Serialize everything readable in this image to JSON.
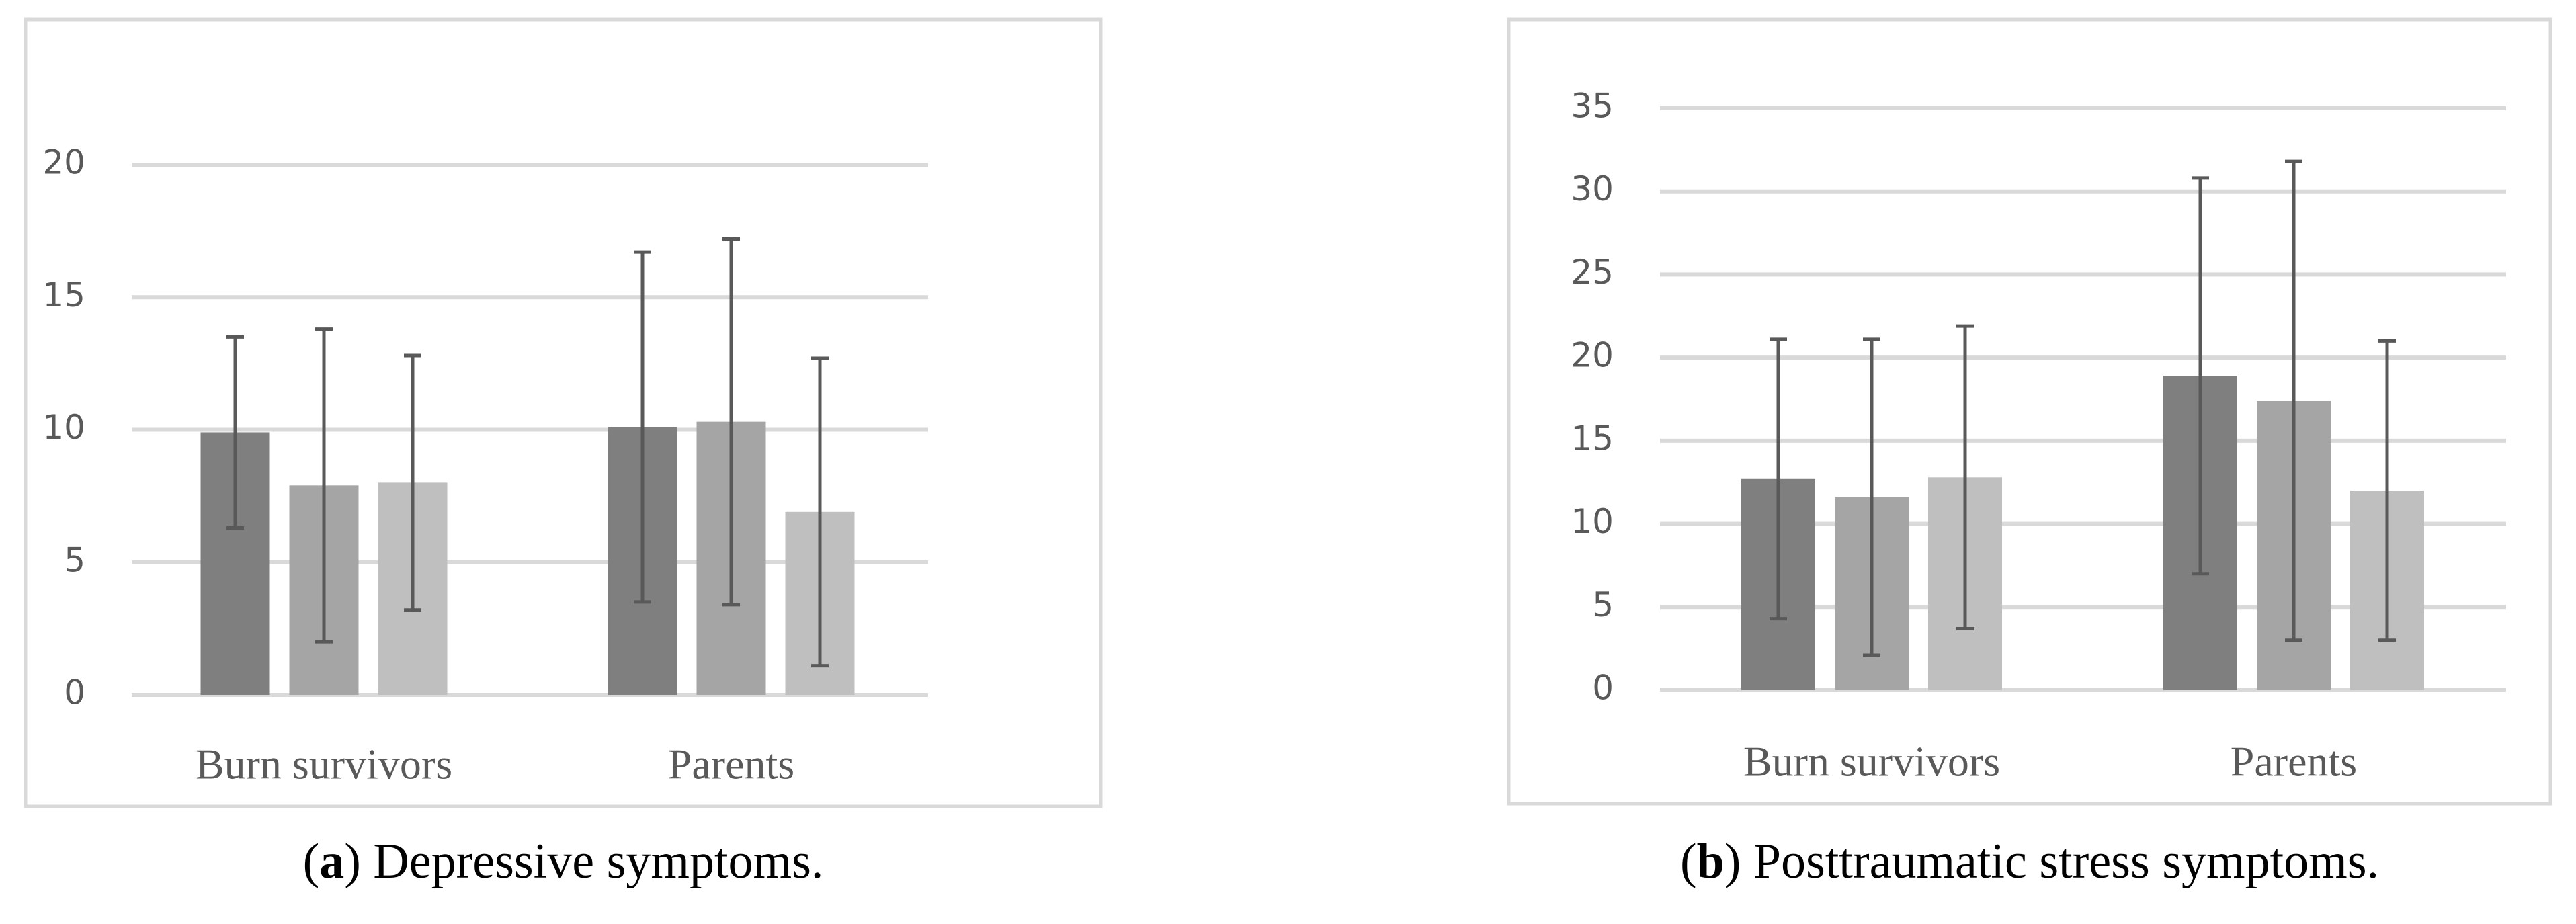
{
  "chart_data": [
    {
      "type": "bar",
      "caption": [
        "(",
        "a",
        ") Depressive symptoms."
      ],
      "categories": [
        "Burn survivors",
        "Parents"
      ],
      "series": [
        {
          "color": "#7f7f7f",
          "values": [
            9.9,
            10.1
          ],
          "errors": [
            3.6,
            6.6
          ]
        },
        {
          "color": "#a5a5a5",
          "values": [
            7.9,
            10.3
          ],
          "errors": [
            5.9,
            6.9
          ]
        },
        {
          "color": "#bfbfbf",
          "values": [
            8.0,
            6.9
          ],
          "errors": [
            4.8,
            5.8
          ]
        }
      ],
      "ylim": [
        0,
        20
      ],
      "yticks": [
        0,
        5,
        10,
        15,
        20
      ],
      "grid": true
    },
    {
      "type": "bar",
      "caption": [
        "(",
        "b",
        ") Posttraumatic stress symptoms."
      ],
      "categories": [
        "Burn survivors",
        "Parents"
      ],
      "series": [
        {
          "color": "#7f7f7f",
          "values": [
            12.7,
            18.9
          ],
          "errors": [
            8.4,
            11.9
          ]
        },
        {
          "color": "#a5a5a5",
          "values": [
            11.6,
            17.4
          ],
          "errors": [
            9.5,
            14.4
          ]
        },
        {
          "color": "#bfbfbf",
          "values": [
            12.8,
            12.0
          ],
          "errors": [
            9.1,
            9.0
          ]
        }
      ],
      "ylim": [
        0,
        35
      ],
      "yticks": [
        0,
        5,
        10,
        15,
        20,
        25,
        30,
        35
      ],
      "grid": true
    }
  ]
}
